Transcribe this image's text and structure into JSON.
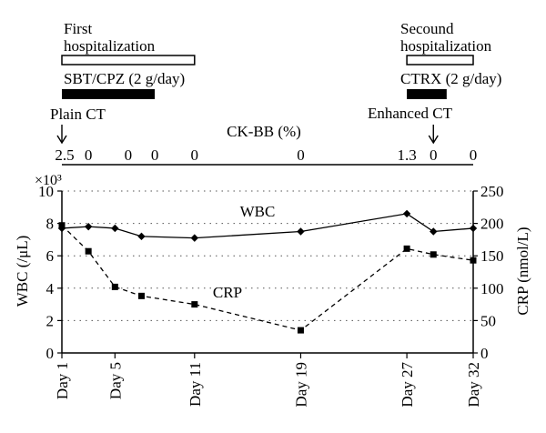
{
  "annotations": {
    "first_hospitalization": [
      "First",
      "hospitalization"
    ],
    "second_hospitalization": [
      "Secound",
      "hospitalization"
    ],
    "treatment1": "SBT/CPZ (2 g/day)",
    "treatment2": "CTRX (2 g/day)",
    "plain_ct": "Plain CT",
    "enhanced_ct": "Enhanced CT",
    "ckbb_title": "CK-BB (%)",
    "ckbb_values": [
      {
        "day": 1,
        "label": "2.5"
      },
      {
        "day": 3,
        "label": "0"
      },
      {
        "day": 6,
        "label": "0"
      },
      {
        "day": 8,
        "label": "0"
      },
      {
        "day": 11,
        "label": "0"
      },
      {
        "day": 19,
        "label": "0"
      },
      {
        "day": 27,
        "label": "1.3"
      },
      {
        "day": 29,
        "label": "0"
      },
      {
        "day": 32,
        "label": "0"
      }
    ],
    "hospitalization_bars": [
      {
        "start": 1,
        "end": 11
      },
      {
        "start": 27,
        "end": 32
      }
    ],
    "treatment_bars": [
      {
        "start": 1,
        "end": 8
      },
      {
        "start": 27,
        "end": 30
      }
    ],
    "ct_marks": [
      {
        "day": 1
      },
      {
        "day": 29
      }
    ]
  },
  "chart_data": {
    "type": "line",
    "multiplier_label": "×10³",
    "xlabel": "",
    "ylabel_left": "WBC (/μL)",
    "ylabel_right": "CRP (nmol/L)",
    "xlim": [
      1,
      32
    ],
    "ylim_left": [
      0,
      10
    ],
    "ylim_right": [
      0,
      250
    ],
    "yticks_left": [
      0,
      2,
      4,
      6,
      8,
      10
    ],
    "yticks_right": [
      0,
      50,
      100,
      150,
      200,
      250
    ],
    "xticks": [
      {
        "day": 1,
        "label": "Day 1"
      },
      {
        "day": 5,
        "label": "Day 5"
      },
      {
        "day": 11,
        "label": "Day 11"
      },
      {
        "day": 19,
        "label": "Day 19"
      },
      {
        "day": 27,
        "label": "Day 27"
      },
      {
        "day": 32,
        "label": "Day 32"
      }
    ],
    "grid": "horizontal dotted",
    "series": [
      {
        "name": "WBC",
        "axis": "left",
        "marker": "diamond",
        "line": "solid",
        "x": [
          1,
          3,
          5,
          7,
          11,
          19,
          27,
          29,
          32
        ],
        "values": [
          7.7,
          7.8,
          7.7,
          7.2,
          7.1,
          7.5,
          8.6,
          7.5,
          7.7
        ]
      },
      {
        "name": "CRP",
        "axis": "right",
        "marker": "square",
        "line": "dashed",
        "x": [
          1,
          3,
          5,
          7,
          11,
          19,
          27,
          29,
          32
        ],
        "values": [
          197,
          157,
          102,
          88,
          75,
          35,
          161,
          152,
          143
        ]
      }
    ]
  }
}
